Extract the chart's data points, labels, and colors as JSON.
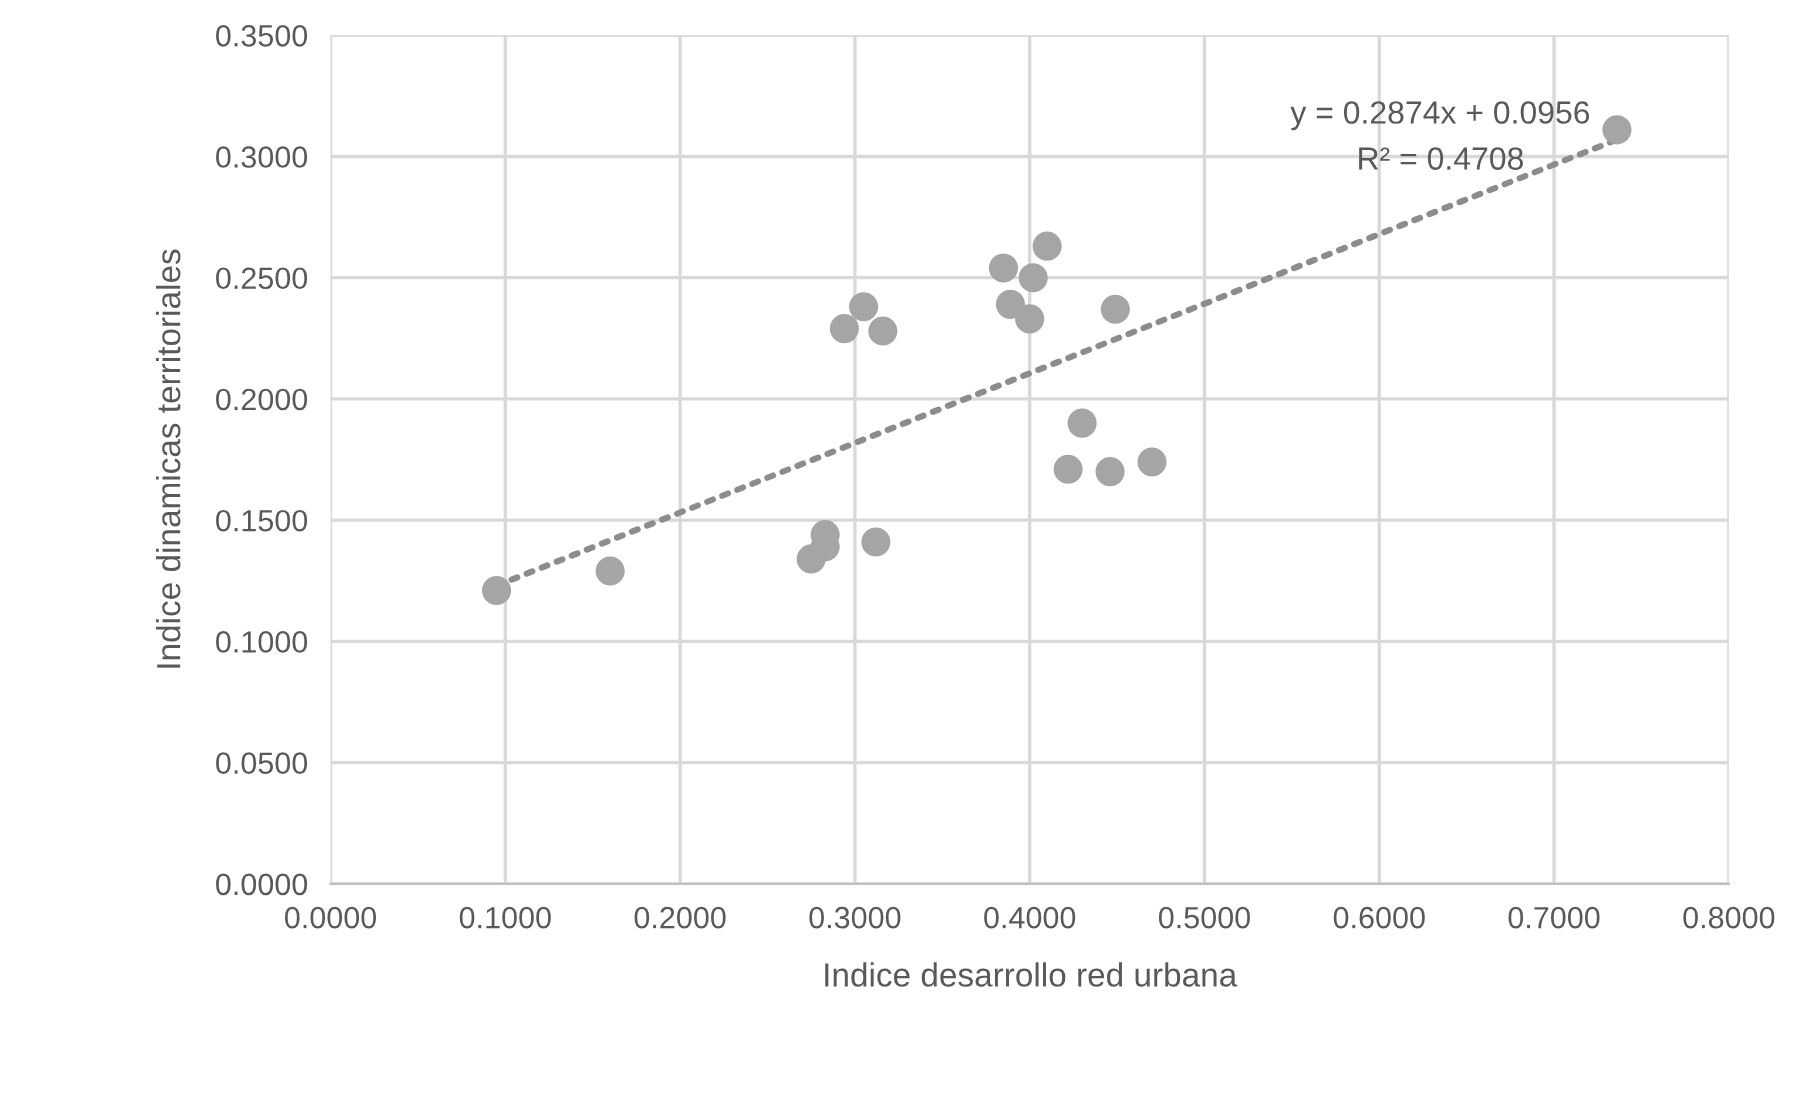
{
  "chart_data": {
    "type": "scatter",
    "xlabel": "Indice desarrollo red urbana",
    "ylabel": "Indice dinamicas territoriales",
    "series": [
      {
        "color": "#a5a5a5",
        "marker": "circle",
        "x": [
          0.095,
          0.16,
          0.275,
          0.283,
          0.283,
          0.312,
          0.294,
          0.305,
          0.316,
          0.385,
          0.41,
          0.402,
          0.389,
          0.4,
          0.449,
          0.43,
          0.422,
          0.446,
          0.47,
          0.736
        ],
        "values": [
          0.121,
          0.129,
          0.134,
          0.139,
          0.144,
          0.141,
          0.229,
          0.238,
          0.228,
          0.254,
          0.263,
          0.25,
          0.239,
          0.233,
          0.237,
          0.19,
          0.171,
          0.17,
          0.174,
          0.311
        ]
      },
      {
        "type": "line",
        "color": "#8c8c8c",
        "line_style": "dotted",
        "marker": "none",
        "x": [
          0.095,
          0.736
        ],
        "values": [
          0.123,
          0.307
        ]
      }
    ],
    "annotations": [
      "y = 0.2874x + 0.0956",
      "R² = 0.4708"
    ],
    "xlim": [
      0,
      0.8
    ],
    "ylim": [
      0,
      0.35
    ],
    "xticks": [
      {
        "value": 0,
        "label": "0.0000"
      },
      {
        "value": 0.1,
        "label": "0.1000"
      },
      {
        "value": 0.2,
        "label": "0.2000"
      },
      {
        "value": 0.3,
        "label": "0.3000"
      },
      {
        "value": 0.4,
        "label": "0.4000"
      },
      {
        "value": 0.5,
        "label": "0.5000"
      },
      {
        "value": 0.6,
        "label": "0.6000"
      },
      {
        "value": 0.7,
        "label": "0.7000"
      },
      {
        "value": 0.8,
        "label": "0.8000"
      }
    ],
    "yticks": [
      {
        "value": 0,
        "label": "0.0000"
      },
      {
        "value": 0.05,
        "label": "0.0500"
      },
      {
        "value": 0.1,
        "label": "0.1000"
      },
      {
        "value": 0.15,
        "label": "0.1500"
      },
      {
        "value": 0.2,
        "label": "0.2000"
      },
      {
        "value": 0.25,
        "label": "0.2500"
      },
      {
        "value": 0.3,
        "label": "0.3000"
      },
      {
        "value": 0.35,
        "label": "0.3500"
      }
    ],
    "grid": true,
    "legend": false
  }
}
